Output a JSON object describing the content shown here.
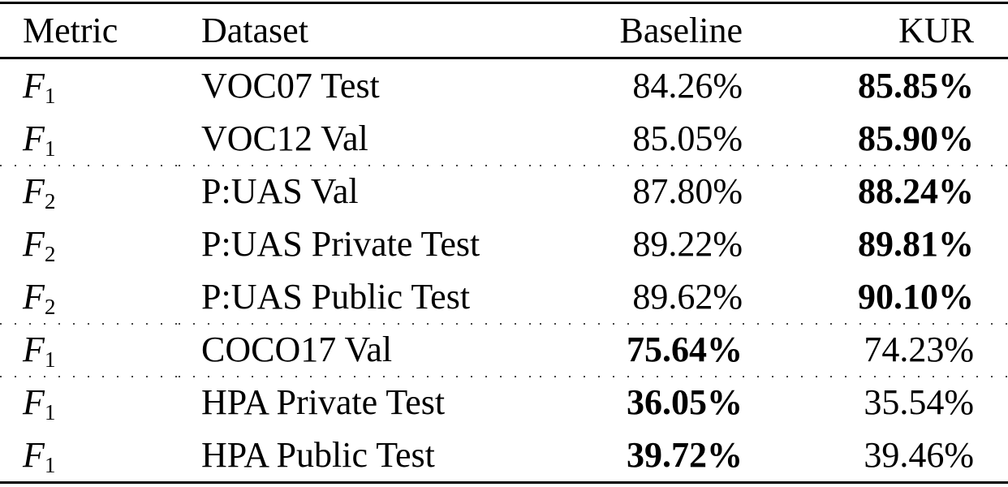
{
  "table": {
    "columns": {
      "metric": "Metric",
      "dataset": "Dataset",
      "baseline": "Baseline",
      "kur": "KUR"
    },
    "rows": [
      {
        "metric_base": "F",
        "metric_sub": "1",
        "dataset": "VOC07 Test",
        "baseline": "84.26%",
        "kur": "85.85%",
        "baseline_bold": false,
        "kur_bold": true,
        "group_start": false
      },
      {
        "metric_base": "F",
        "metric_sub": "1",
        "dataset": "VOC12 Val",
        "baseline": "85.05%",
        "kur": "85.90%",
        "baseline_bold": false,
        "kur_bold": true,
        "group_start": false
      },
      {
        "metric_base": "F",
        "metric_sub": "2",
        "dataset": "P:UAS Val",
        "baseline": "87.80%",
        "kur": "88.24%",
        "baseline_bold": false,
        "kur_bold": true,
        "group_start": true
      },
      {
        "metric_base": "F",
        "metric_sub": "2",
        "dataset": "P:UAS Private Test",
        "baseline": "89.22%",
        "kur": "89.81%",
        "baseline_bold": false,
        "kur_bold": true,
        "group_start": false
      },
      {
        "metric_base": "F",
        "metric_sub": "2",
        "dataset": "P:UAS Public Test",
        "baseline": "89.62%",
        "kur": "90.10%",
        "baseline_bold": false,
        "kur_bold": true,
        "group_start": false
      },
      {
        "metric_base": "F",
        "metric_sub": "1",
        "dataset": "COCO17 Val",
        "baseline": "75.64%",
        "kur": "74.23%",
        "baseline_bold": true,
        "kur_bold": false,
        "group_start": true
      },
      {
        "metric_base": "F",
        "metric_sub": "1",
        "dataset": "HPA Private Test",
        "baseline": "36.05%",
        "kur": "35.54%",
        "baseline_bold": true,
        "kur_bold": false,
        "group_start": true
      },
      {
        "metric_base": "F",
        "metric_sub": "1",
        "dataset": "HPA Public Test",
        "baseline": "39.72%",
        "kur": "39.46%",
        "baseline_bold": true,
        "kur_bold": false,
        "group_start": false
      }
    ]
  }
}
